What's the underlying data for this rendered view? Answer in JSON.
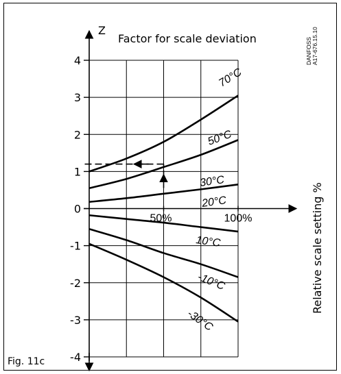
{
  "chart_data": {
    "type": "line",
    "title": "Factor for scale deviation",
    "ylabel": "Z",
    "xlabel": "Relative scale setting %",
    "figure_label": "Fig. 11c",
    "code_label": [
      "DANFOSS",
      "A17-676.15.10"
    ],
    "ylim": [
      -4,
      4
    ],
    "yticks": [
      "4",
      "3",
      "2",
      "1",
      "0",
      "-1",
      "-2",
      "-3",
      "-4"
    ],
    "xtick_labels": [
      "50%",
      "100%"
    ],
    "grid": true,
    "series": [
      {
        "name": "70°C",
        "x": [
          0,
          25,
          50,
          75,
          100
        ],
        "values": [
          1.0,
          1.35,
          1.8,
          2.4,
          3.05
        ]
      },
      {
        "name": "50°C",
        "x": [
          0,
          25,
          50,
          75,
          100
        ],
        "values": [
          0.55,
          0.8,
          1.12,
          1.45,
          1.85
        ]
      },
      {
        "name": "30°C",
        "x": [
          0,
          25,
          50,
          75,
          100
        ],
        "values": [
          0.18,
          0.28,
          0.4,
          0.52,
          0.65
        ]
      },
      {
        "name": "20°C",
        "x": [
          0,
          100
        ],
        "values": [
          0,
          0
        ]
      },
      {
        "name": "10°C",
        "x": [
          0,
          25,
          50,
          75,
          100
        ],
        "values": [
          -0.18,
          -0.28,
          -0.38,
          -0.5,
          -0.62
        ]
      },
      {
        "name": "-10°C",
        "x": [
          0,
          25,
          50,
          75,
          100
        ],
        "values": [
          -0.55,
          -0.85,
          -1.2,
          -1.5,
          -1.85
        ]
      },
      {
        "name": "-30°C",
        "x": [
          0,
          25,
          50,
          75,
          100
        ],
        "values": [
          -0.95,
          -1.38,
          -1.85,
          -2.4,
          -3.05
        ]
      }
    ],
    "annotation": {
      "x": 50,
      "y": 1.2
    }
  }
}
